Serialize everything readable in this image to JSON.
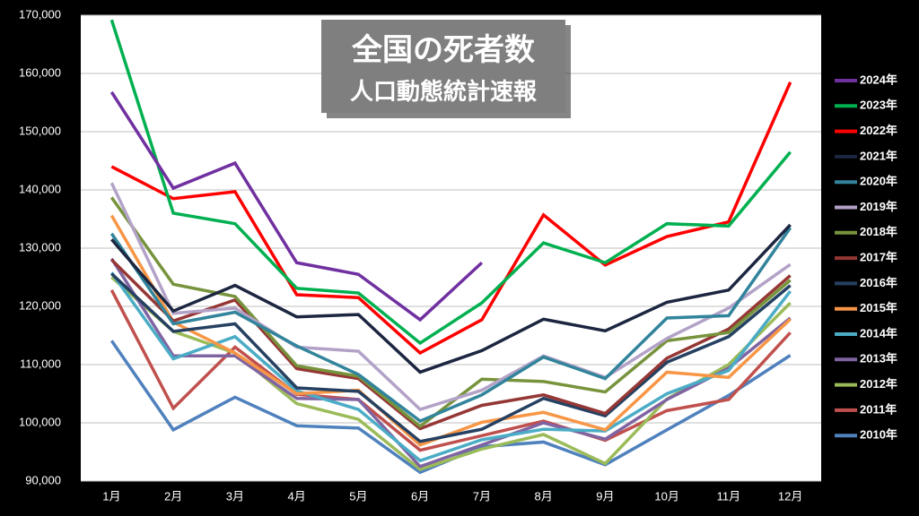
{
  "chart_data": {
    "type": "line",
    "title": "全国の死者数",
    "subtitle": "人口動態統計速報",
    "categories": [
      "1月",
      "2月",
      "3月",
      "4月",
      "5月",
      "6月",
      "7月",
      "8月",
      "9月",
      "10月",
      "11月",
      "12月"
    ],
    "ylim": [
      90000,
      170000
    ],
    "yticks": [
      {
        "value": 90000,
        "label": "90,000"
      },
      {
        "value": 100000,
        "label": "100,000"
      },
      {
        "value": 110000,
        "label": "110,000"
      },
      {
        "value": 120000,
        "label": "120,000"
      },
      {
        "value": 130000,
        "label": "130,000"
      },
      {
        "value": 140000,
        "label": "140,000"
      },
      {
        "value": 150000,
        "label": "150,000"
      },
      {
        "value": 160000,
        "label": "160,000"
      },
      {
        "value": 170000,
        "label": "170,000"
      }
    ],
    "grid": true,
    "legend": "right",
    "series": [
      {
        "name": "2024年",
        "color": "#7030a0",
        "values": [
          156800,
          140300,
          144600,
          127500,
          125500,
          117700,
          127500,
          null,
          null,
          null,
          null,
          null
        ]
      },
      {
        "name": "2023年",
        "color": "#00b050",
        "values": [
          169200,
          136000,
          134200,
          123100,
          122300,
          113700,
          120600,
          130900,
          127500,
          134200,
          133800,
          146500
        ]
      },
      {
        "name": "2022年",
        "color": "#ff0000",
        "values": [
          144000,
          138500,
          139700,
          122000,
          121500,
          112000,
          117700,
          135700,
          127100,
          132000,
          134500,
          158500
        ]
      },
      {
        "name": "2021年",
        "color": "#1c2640",
        "values": [
          131500,
          119200,
          123600,
          118200,
          118600,
          108700,
          112400,
          117800,
          115800,
          120700,
          122800,
          134000
        ]
      },
      {
        "name": "2020年",
        "color": "#31849b",
        "values": [
          132500,
          117000,
          119000,
          113200,
          108300,
          100300,
          104800,
          111300,
          107600,
          118000,
          118400,
          133500
        ]
      },
      {
        "name": "2019年",
        "color": "#b3a2c7",
        "values": [
          141200,
          118800,
          119700,
          113000,
          112300,
          102300,
          105600,
          111500,
          107800,
          114500,
          119700,
          127200
        ]
      },
      {
        "name": "2018年",
        "color": "#77933c",
        "values": [
          138700,
          123800,
          121700,
          109800,
          108000,
          99400,
          107500,
          107100,
          105300,
          114100,
          115500,
          124500
        ]
      },
      {
        "name": "2017年",
        "color": "#953735",
        "values": [
          128000,
          117500,
          121100,
          109300,
          107600,
          99000,
          103000,
          104800,
          101600,
          111100,
          116100,
          125300
        ]
      },
      {
        "name": "2016年",
        "color": "#254061",
        "values": [
          125600,
          115700,
          117000,
          106000,
          105400,
          96800,
          98900,
          104200,
          101200,
          110400,
          114800,
          123600
        ]
      },
      {
        "name": "2015年",
        "color": "#f79646",
        "values": [
          135600,
          117300,
          112000,
          105000,
          105600,
          96200,
          100100,
          101800,
          98800,
          108700,
          107800,
          117800
        ]
      },
      {
        "name": "2014年",
        "color": "#4bacc6",
        "values": [
          125800,
          111000,
          114800,
          105500,
          102300,
          93500,
          97100,
          98900,
          98600,
          105000,
          109000,
          122600
        ]
      },
      {
        "name": "2013年",
        "color": "#8064a2",
        "values": [
          128200,
          111500,
          111500,
          104200,
          104000,
          92500,
          96200,
          100000,
          97200,
          104000,
          109400,
          118000
        ]
      },
      {
        "name": "2012年",
        "color": "#9bbb59",
        "values": [
          125000,
          115700,
          112000,
          103300,
          100600,
          92000,
          95500,
          98000,
          93000,
          104100,
          110000,
          120600
        ]
      },
      {
        "name": "2011年",
        "color": "#c0504d",
        "values": [
          122800,
          102500,
          113000,
          104900,
          104000,
          95300,
          97800,
          100300,
          97000,
          102100,
          104000,
          115500
        ]
      },
      {
        "name": "2010年",
        "color": "#4f81bd",
        "values": [
          114100,
          98800,
          104400,
          99500,
          99100,
          91500,
          95900,
          96700,
          92800,
          98800,
          104700,
          111600
        ]
      }
    ]
  }
}
